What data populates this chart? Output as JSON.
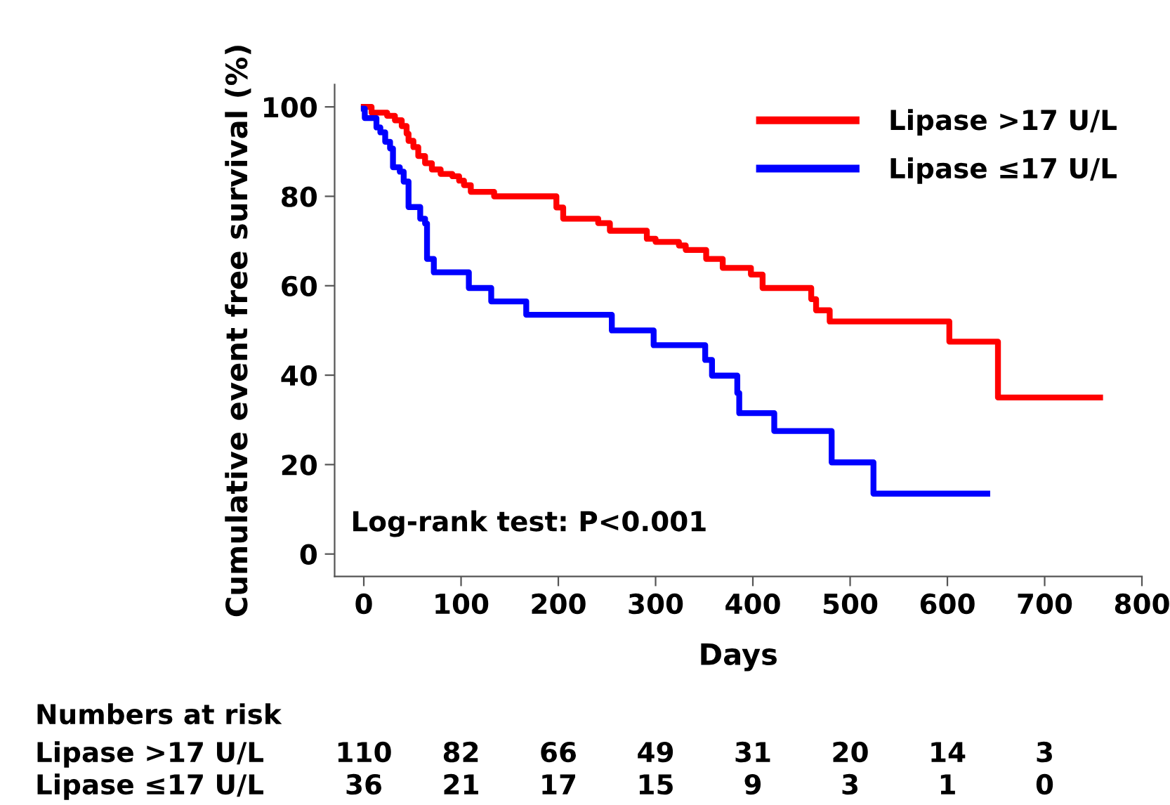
{
  "chart_data": {
    "type": "step",
    "xlabel": "Days",
    "ylabel": "Cumulative event free survival (%)",
    "xlim": [
      -30,
      800
    ],
    "xticks": [
      0,
      100,
      200,
      300,
      400,
      500,
      600,
      700,
      800
    ],
    "ylim": [
      -5,
      105
    ],
    "yticks": [
      0,
      20,
      40,
      60,
      80,
      100
    ],
    "grid": false,
    "legend": "top right",
    "marker": "none",
    "line_style": "solid",
    "series": [
      {
        "name": "Lipase >17 U/L",
        "color": "#ff0000",
        "x": [
          0,
          8,
          24,
          32,
          39,
          44,
          46,
          51,
          56,
          63,
          70,
          79,
          91,
          98,
          103,
          110,
          134,
          198,
          205,
          241,
          253,
          291,
          300,
          324,
          331,
          352,
          369,
          398,
          410,
          460,
          465,
          479,
          602,
          652,
          757
        ],
        "values": [
          100,
          98.7,
          98,
          97,
          95.7,
          94,
          92.4,
          91,
          89,
          87.4,
          86,
          85,
          84.5,
          83.5,
          82.5,
          81,
          80,
          77.5,
          75,
          74,
          72.3,
          70.5,
          69.8,
          69,
          68,
          66,
          64,
          62.5,
          59.5,
          57,
          54.5,
          52,
          47.5,
          35,
          35
        ]
      },
      {
        "name": "Lipase ≤17 U/L",
        "color": "#0000ff",
        "x": [
          0,
          1,
          13,
          17,
          22,
          27,
          30,
          37,
          41,
          46,
          58,
          63,
          65,
          72,
          108,
          131,
          167,
          255,
          298,
          351,
          358,
          384,
          386,
          422,
          481,
          524,
          641
        ],
        "values": [
          99.6,
          97.5,
          95.4,
          94.3,
          92.2,
          90.7,
          86.5,
          85.5,
          83.3,
          77.6,
          75,
          73.9,
          66,
          63,
          59.5,
          56.5,
          53.5,
          50,
          46.7,
          43.4,
          39.9,
          36,
          31.5,
          27.5,
          20.5,
          13.5,
          13.5
        ]
      }
    ],
    "annotations": [
      "Log-rank test: P<0.001",
      "Numbers at risk",
      "Lipase >17 U/L",
      "110",
      "82",
      "66",
      "49",
      "31",
      "20",
      "14",
      "3",
      "Lipase ≤17 U/L",
      "36",
      "21",
      "17",
      "15",
      "9",
      "3",
      "1",
      "0"
    ]
  }
}
